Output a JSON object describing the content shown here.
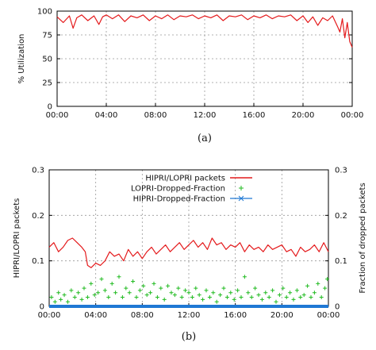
{
  "chart_data": [
    {
      "type": "line",
      "caption": "(a)",
      "ylabel": "% Utilization",
      "xlabel": "",
      "ylim": [
        0,
        100
      ],
      "y_ticks": [
        "0",
        "25",
        "50",
        "75",
        "100"
      ],
      "x_ticks": [
        "00:00",
        "04:00",
        "08:00",
        "12:00",
        "16:00",
        "20:00",
        "00:00"
      ],
      "grid": true,
      "series": [
        {
          "color": "#e41a1c",
          "x": [
            0,
            0.5,
            1,
            1.3,
            1.6,
            2,
            2.5,
            3,
            3.4,
            3.7,
            4,
            4.5,
            5,
            5.5,
            6,
            6.5,
            7,
            7.5,
            8,
            8.5,
            9,
            9.5,
            10,
            10.5,
            11,
            11.5,
            12,
            12.5,
            13,
            13.5,
            14,
            14.5,
            15,
            15.5,
            16,
            16.5,
            17,
            17.5,
            18,
            18.5,
            19,
            19.5,
            20,
            20.4,
            20.8,
            21.2,
            21.6,
            22,
            22.4,
            22.8,
            23,
            23.2,
            23.4,
            23.6,
            23.8,
            24
          ],
          "y": [
            94,
            88,
            95,
            82,
            93,
            96,
            90,
            95,
            86,
            94,
            96,
            92,
            96,
            89,
            95,
            93,
            96,
            90,
            95,
            92,
            96,
            91,
            95,
            94,
            96,
            92,
            95,
            93,
            96,
            90,
            95,
            94,
            96,
            91,
            95,
            93,
            96,
            92,
            95,
            94,
            96,
            90,
            95,
            88,
            94,
            85,
            93,
            90,
            95,
            84,
            78,
            92,
            72,
            88,
            68,
            62
          ]
        }
      ]
    },
    {
      "type": "line",
      "caption": "(b)",
      "ylabel": "HIPRI/LOPRI packets",
      "ylabel_right": "Fraction of dropped packets",
      "xlabel": "",
      "ylim": [
        0,
        0.3
      ],
      "ylim_right": [
        0,
        0.3
      ],
      "y_ticks": [
        "0",
        "0.1",
        "0.2",
        "0.3"
      ],
      "y_ticks_right": [
        "0",
        "0.1",
        "0.2",
        "0.3"
      ],
      "x_ticks": [
        "00:00",
        "04:00",
        "08:00",
        "12:00",
        "16:00",
        "20:00",
        "00:00"
      ],
      "grid": true,
      "legend_position": "top-right",
      "series": [
        {
          "name": "HIPRI/LOPRI packets",
          "color": "#e41a1c",
          "marker": "line",
          "x": [
            0,
            0.4,
            0.8,
            1.2,
            1.6,
            2,
            2.4,
            2.8,
            3.1,
            3.3,
            3.6,
            4,
            4.4,
            4.8,
            5.2,
            5.6,
            6,
            6.4,
            6.8,
            7.2,
            7.6,
            8,
            8.4,
            8.8,
            9.2,
            9.6,
            10,
            10.4,
            10.8,
            11.2,
            11.6,
            12,
            12.4,
            12.8,
            13.2,
            13.6,
            14,
            14.4,
            14.8,
            15.2,
            15.6,
            16,
            16.4,
            16.8,
            17.2,
            17.6,
            18,
            18.4,
            18.8,
            19.2,
            19.6,
            20,
            20.4,
            20.8,
            21.2,
            21.6,
            22,
            22.4,
            22.8,
            23.2,
            23.6,
            24
          ],
          "y": [
            0.13,
            0.14,
            0.12,
            0.13,
            0.145,
            0.15,
            0.14,
            0.13,
            0.12,
            0.09,
            0.085,
            0.095,
            0.09,
            0.1,
            0.12,
            0.11,
            0.115,
            0.1,
            0.125,
            0.11,
            0.12,
            0.105,
            0.12,
            0.13,
            0.115,
            0.125,
            0.135,
            0.12,
            0.13,
            0.14,
            0.125,
            0.135,
            0.145,
            0.13,
            0.14,
            0.125,
            0.15,
            0.135,
            0.14,
            0.125,
            0.135,
            0.13,
            0.14,
            0.12,
            0.135,
            0.125,
            0.13,
            0.12,
            0.135,
            0.125,
            0.13,
            0.135,
            0.12,
            0.125,
            0.11,
            0.13,
            0.12,
            0.125,
            0.135,
            0.12,
            0.14,
            0.12
          ]
        },
        {
          "name": "LOPRI-Dropped-Fraction",
          "color": "#22bb22",
          "marker": "+",
          "x": [
            0.2,
            0.5,
            0.8,
            1.0,
            1.3,
            1.6,
            1.9,
            2.2,
            2.5,
            2.8,
            3.0,
            3.3,
            3.6,
            3.9,
            4.2,
            4.5,
            4.8,
            5.1,
            5.4,
            5.7,
            6.0,
            6.3,
            6.6,
            6.9,
            7.2,
            7.5,
            7.8,
            8.1,
            8.4,
            8.7,
            9.0,
            9.3,
            9.6,
            9.9,
            10.2,
            10.5,
            10.8,
            11.1,
            11.4,
            11.7,
            12.0,
            12.3,
            12.6,
            12.9,
            13.2,
            13.5,
            13.8,
            14.1,
            14.4,
            14.7,
            15.0,
            15.3,
            15.6,
            15.9,
            16.2,
            16.5,
            16.8,
            17.1,
            17.4,
            17.7,
            18.0,
            18.3,
            18.6,
            18.9,
            19.2,
            19.5,
            19.8,
            20.1,
            20.4,
            20.7,
            21.0,
            21.3,
            21.6,
            21.9,
            22.2,
            22.5,
            22.8,
            23.1,
            23.4,
            23.7,
            23.9
          ],
          "y": [
            0.02,
            0.01,
            0.03,
            0.015,
            0.025,
            0.01,
            0.035,
            0.02,
            0.03,
            0.015,
            0.04,
            0.02,
            0.05,
            0.025,
            0.03,
            0.06,
            0.035,
            0.02,
            0.05,
            0.03,
            0.065,
            0.02,
            0.04,
            0.03,
            0.055,
            0.02,
            0.035,
            0.045,
            0.025,
            0.03,
            0.05,
            0.02,
            0.04,
            0.015,
            0.045,
            0.03,
            0.025,
            0.04,
            0.02,
            0.035,
            0.03,
            0.02,
            0.04,
            0.025,
            0.015,
            0.035,
            0.02,
            0.03,
            0.01,
            0.025,
            0.04,
            0.02,
            0.03,
            0.015,
            0.035,
            0.02,
            0.065,
            0.03,
            0.02,
            0.04,
            0.025,
            0.015,
            0.03,
            0.02,
            0.035,
            0.01,
            0.025,
            0.04,
            0.02,
            0.03,
            0.015,
            0.035,
            0.02,
            0.025,
            0.045,
            0.02,
            0.03,
            0.05,
            0.02,
            0.04,
            0.06
          ]
        },
        {
          "name": "HIPRI-Dropped-Fraction",
          "color": "#1f78d4",
          "marker": "x",
          "x": [
            0,
            24
          ],
          "y": [
            0,
            0
          ]
        }
      ]
    }
  ]
}
